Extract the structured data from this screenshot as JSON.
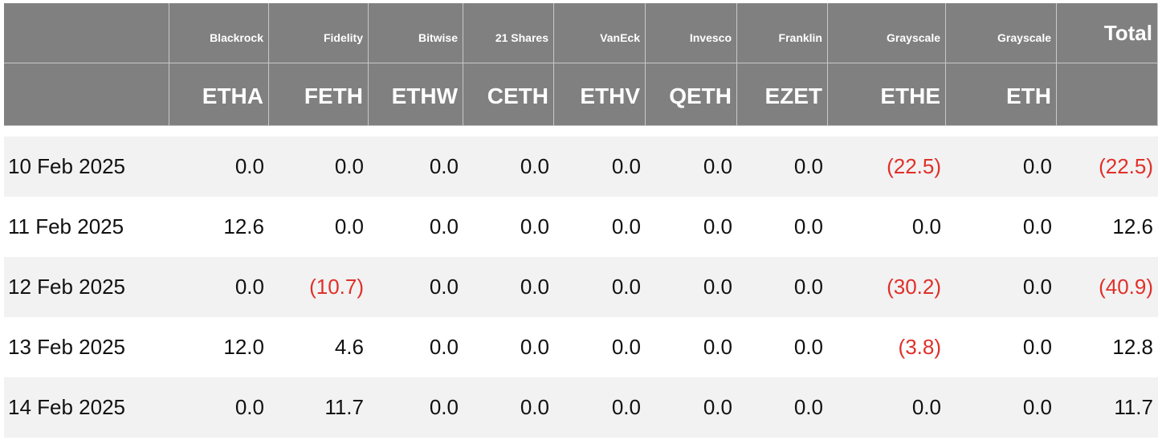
{
  "table": {
    "header": {
      "issuers": [
        "Blackrock",
        "Fidelity",
        "Bitwise",
        "21 Shares",
        "VanEck",
        "Invesco",
        "Franklin",
        "Grayscale",
        "Grayscale"
      ],
      "total": "Total",
      "tickers": [
        "ETHA",
        "FETH",
        "ETHW",
        "CETH",
        "ETHV",
        "QETH",
        "EZET",
        "ETHE",
        "ETH"
      ]
    },
    "rows": [
      {
        "date": "10 Feb 2025",
        "values": [
          "0.0",
          "0.0",
          "0.0",
          "0.0",
          "0.0",
          "0.0",
          "0.0",
          "(22.5)",
          "0.0",
          "(22.5)"
        ]
      },
      {
        "date": "11 Feb 2025",
        "values": [
          "12.6",
          "0.0",
          "0.0",
          "0.0",
          "0.0",
          "0.0",
          "0.0",
          "0.0",
          "0.0",
          "12.6"
        ]
      },
      {
        "date": "12 Feb 2025",
        "values": [
          "0.0",
          "(10.7)",
          "0.0",
          "0.0",
          "0.0",
          "0.0",
          "0.0",
          "(30.2)",
          "0.0",
          "(40.9)"
        ]
      },
      {
        "date": "13 Feb 2025",
        "values": [
          "12.0",
          "4.6",
          "0.0",
          "0.0",
          "0.0",
          "0.0",
          "0.0",
          "(3.8)",
          "0.0",
          "12.8"
        ]
      },
      {
        "date": "14 Feb 2025",
        "values": [
          "0.0",
          "11.7",
          "0.0",
          "0.0",
          "0.0",
          "0.0",
          "0.0",
          "0.0",
          "0.0",
          "11.7"
        ]
      }
    ]
  }
}
